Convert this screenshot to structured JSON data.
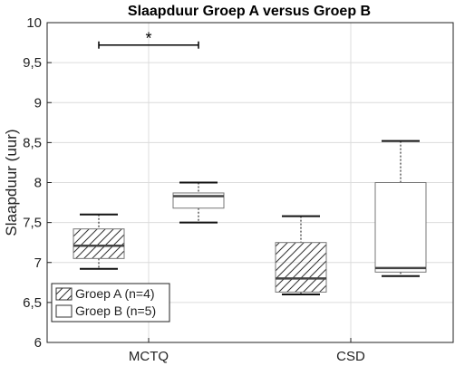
{
  "chart_data": {
    "type": "box",
    "title": "Slaapduur Groep A versus Groep B",
    "ylabel": "Slaapduur (uur)",
    "xlabel": "",
    "ylim": [
      6,
      10
    ],
    "yticks": [
      6,
      6.5,
      7,
      7.5,
      8,
      8.5,
      9,
      9.5,
      10
    ],
    "ytick_labels": [
      "6",
      "6,5",
      "7",
      "7,5",
      "8",
      "8,5",
      "9",
      "9,5",
      "10"
    ],
    "categories": [
      "MCTQ",
      "CSD"
    ],
    "grid": true,
    "legend_position": "bottom-left",
    "series": [
      {
        "name": "Groep A (n=4)",
        "pattern": "hatched",
        "boxes": [
          {
            "category": "MCTQ",
            "min": 6.92,
            "q1": 7.05,
            "median": 7.21,
            "q3": 7.42,
            "max": 7.6
          },
          {
            "category": "CSD",
            "min": 6.6,
            "q1": 6.63,
            "median": 6.8,
            "q3": 7.25,
            "max": 7.58
          }
        ]
      },
      {
        "name": "Groep B (n=5)",
        "pattern": "plain",
        "boxes": [
          {
            "category": "MCTQ",
            "min": 7.5,
            "q1": 7.68,
            "median": 7.83,
            "q3": 7.87,
            "max": 8.0
          },
          {
            "category": "CSD",
            "min": 6.83,
            "q1": 6.88,
            "median": 6.93,
            "q3": 8.0,
            "max": 8.52
          }
        ]
      }
    ],
    "annotations": [
      {
        "text": "*",
        "category": "MCTQ",
        "y": 9.72,
        "type": "significance-bracket"
      }
    ]
  }
}
